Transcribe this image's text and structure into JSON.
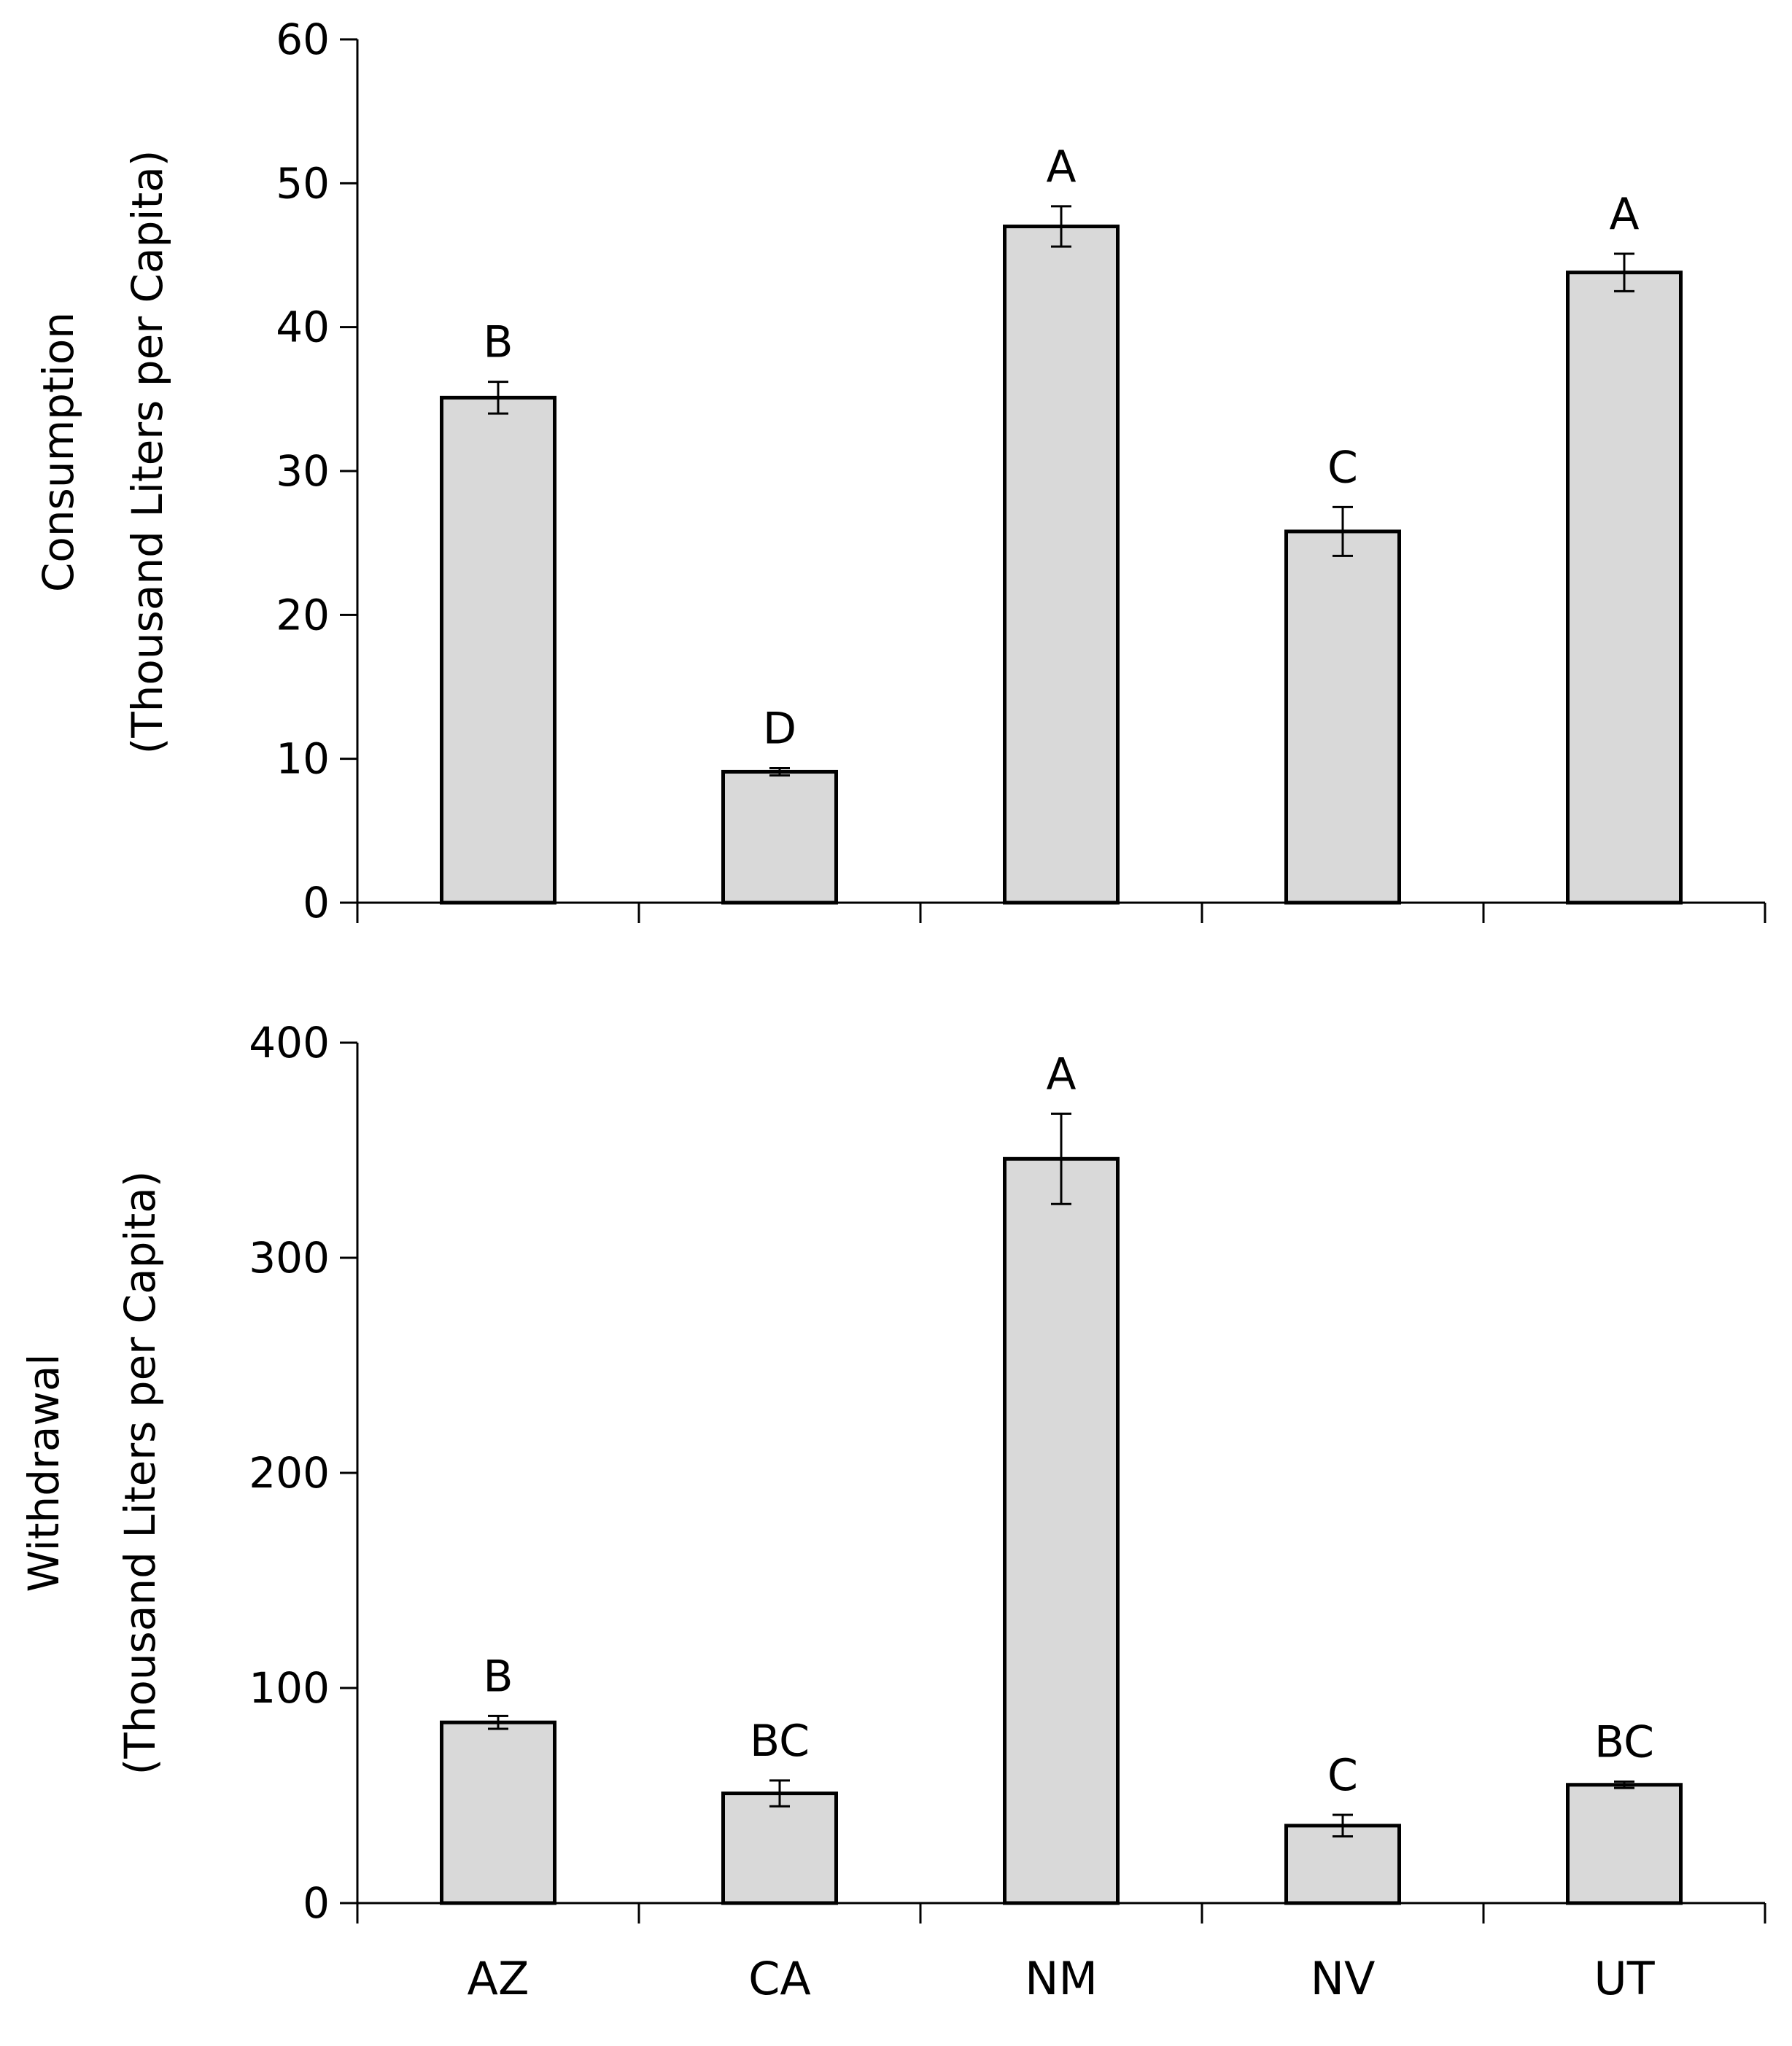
{
  "chart_data": [
    {
      "type": "bar",
      "name": "consumption",
      "categories": [
        "AZ",
        "CA",
        "NM",
        "NV",
        "UT"
      ],
      "values": [
        35.1,
        9.1,
        47.0,
        25.8,
        43.8
      ],
      "errors": [
        1.1,
        0.25,
        1.4,
        1.7,
        1.3
      ],
      "significance": [
        "B",
        "D",
        "A",
        "C",
        "A"
      ],
      "ylabel_line1": "Consumption",
      "ylabel_line2": "(Thousand Liters per Capita)",
      "yticks": [
        "0",
        "10",
        "20",
        "30",
        "40",
        "50",
        "60"
      ],
      "ylim": [
        0,
        60
      ],
      "show_category_labels": false,
      "bar_color": "#d9d9d9"
    },
    {
      "type": "bar",
      "name": "withdrawal",
      "categories": [
        "AZ",
        "CA",
        "NM",
        "NV",
        "UT"
      ],
      "values": [
        84,
        51,
        346,
        36,
        55
      ],
      "errors": [
        3,
        6,
        21,
        5,
        1.5
      ],
      "significance": [
        "B",
        "BC",
        "A",
        "C",
        "BC"
      ],
      "ylabel_line1": "Withdrawal",
      "ylabel_line2": "(Thousand Liters per Capita)",
      "yticks": [
        "0",
        "100",
        "200",
        "300",
        "400"
      ],
      "ylim": [
        0,
        400
      ],
      "show_category_labels": true,
      "bar_color": "#d9d9d9"
    }
  ]
}
